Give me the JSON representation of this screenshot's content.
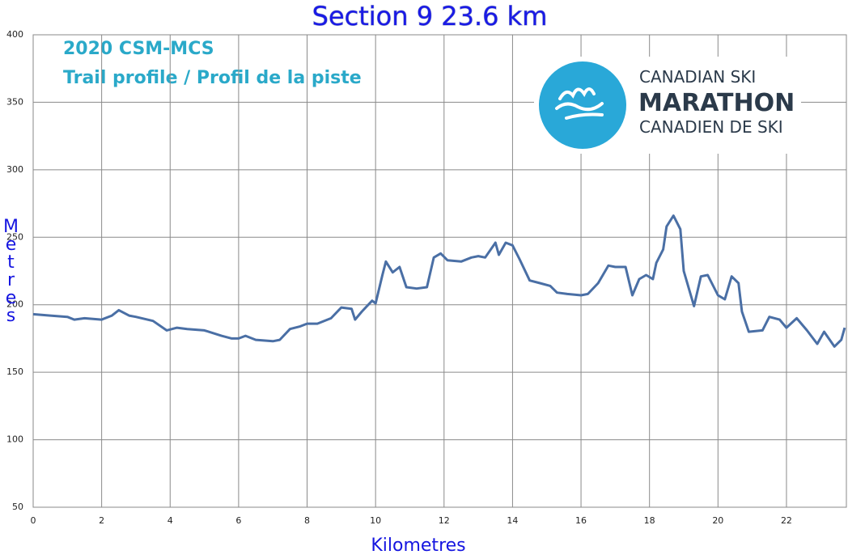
{
  "chart_data": {
    "type": "line",
    "title": "Section 9  23.6 km",
    "annotations": [
      "2020 CSM-MCS",
      "Trail profile / Profil de la piste"
    ],
    "logo": [
      "CANADIAN SKI",
      "MARATHON",
      "CANADIEN DE SKI"
    ],
    "x_label": "Kilometres",
    "y_label": "Metres",
    "xlim": [
      0,
      23.75
    ],
    "ylim": [
      50,
      400
    ],
    "xticks": [
      0,
      2,
      4,
      6,
      8,
      10,
      12,
      14,
      16,
      18,
      20,
      22
    ],
    "yticks": [
      50,
      100,
      150,
      200,
      250,
      300,
      350,
      400
    ],
    "grid": true,
    "series": [
      {
        "color": "#4a6fa5",
        "x": [
          0,
          0.5,
          1.0,
          1.2,
          1.5,
          2.0,
          2.3,
          2.5,
          2.8,
          3.0,
          3.5,
          3.9,
          4.2,
          4.5,
          5.0,
          5.5,
          5.8,
          6.0,
          6.2,
          6.5,
          7.0,
          7.2,
          7.5,
          7.8,
          8.0,
          8.3,
          8.7,
          9.0,
          9.3,
          9.4,
          9.6,
          9.9,
          10.0,
          10.2,
          10.3,
          10.5,
          10.7,
          10.9,
          11.2,
          11.5,
          11.7,
          11.9,
          12.1,
          12.5,
          12.8,
          13.0,
          13.2,
          13.5,
          13.6,
          13.8,
          14.0,
          14.2,
          14.5,
          14.8,
          15.1,
          15.3,
          15.6,
          16.0,
          16.2,
          16.5,
          16.8,
          17.0,
          17.3,
          17.5,
          17.7,
          17.9,
          18.1,
          18.2,
          18.4,
          18.5,
          18.7,
          18.9,
          19.0,
          19.3,
          19.5,
          19.7,
          20.0,
          20.2,
          20.4,
          20.6,
          20.7,
          20.9,
          21.3,
          21.5,
          21.8,
          22.0,
          22.3,
          22.6,
          22.9,
          23.1,
          23.4,
          23.6,
          23.7
        ],
        "values": [
          193,
          192,
          191,
          189,
          190,
          189,
          192,
          196,
          192,
          191,
          188,
          181,
          183,
          182,
          181,
          177,
          175,
          175,
          177,
          174,
          173,
          174,
          182,
          184,
          186,
          186,
          190,
          198,
          197,
          189,
          195,
          203,
          201,
          222,
          232,
          224,
          228,
          213,
          212,
          213,
          235,
          238,
          233,
          232,
          235,
          236,
          235,
          246,
          237,
          246,
          244,
          234,
          218,
          216,
          214,
          209,
          208,
          207,
          208,
          216,
          229,
          228,
          228,
          207,
          219,
          222,
          219,
          231,
          241,
          258,
          266,
          256,
          225,
          199,
          221,
          222,
          207,
          204,
          221,
          216,
          195,
          180,
          181,
          191,
          189,
          183,
          190,
          181,
          171,
          180,
          169,
          174,
          183
        ]
      }
    ]
  }
}
